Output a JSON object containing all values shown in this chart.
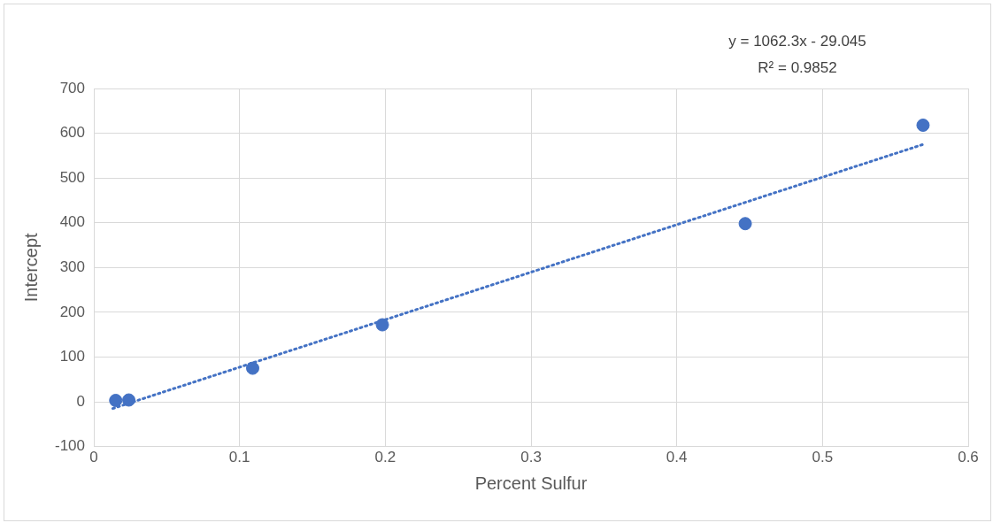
{
  "chart_data": {
    "type": "scatter",
    "xlabel": "Percent Sulfur",
    "ylabel": "Intercept",
    "annotations": [
      "y = 1062.3x - 29.045",
      "R² = 0.9852"
    ],
    "xlim": [
      0,
      0.6
    ],
    "xticks": [
      0,
      0.1,
      0.2,
      0.3,
      0.4,
      0.5,
      0.6
    ],
    "ylim": [
      -100,
      700
    ],
    "yticks": [
      -100,
      0,
      100,
      200,
      300,
      400,
      500,
      600,
      700
    ],
    "grid": true,
    "legend": false,
    "marker": "circle",
    "series": [
      {
        "color": "#4472c4",
        "x": [
          0.015,
          0.024,
          0.109,
          0.198,
          0.447,
          0.569
        ],
        "values": [
          3,
          4,
          75,
          172,
          398,
          618
        ]
      },
      {
        "type": "line",
        "color": "#4472c4",
        "line_style": "dotted",
        "marker": "none",
        "x": [
          0.013,
          0.569
        ],
        "values": [
          -15,
          575
        ]
      }
    ]
  }
}
